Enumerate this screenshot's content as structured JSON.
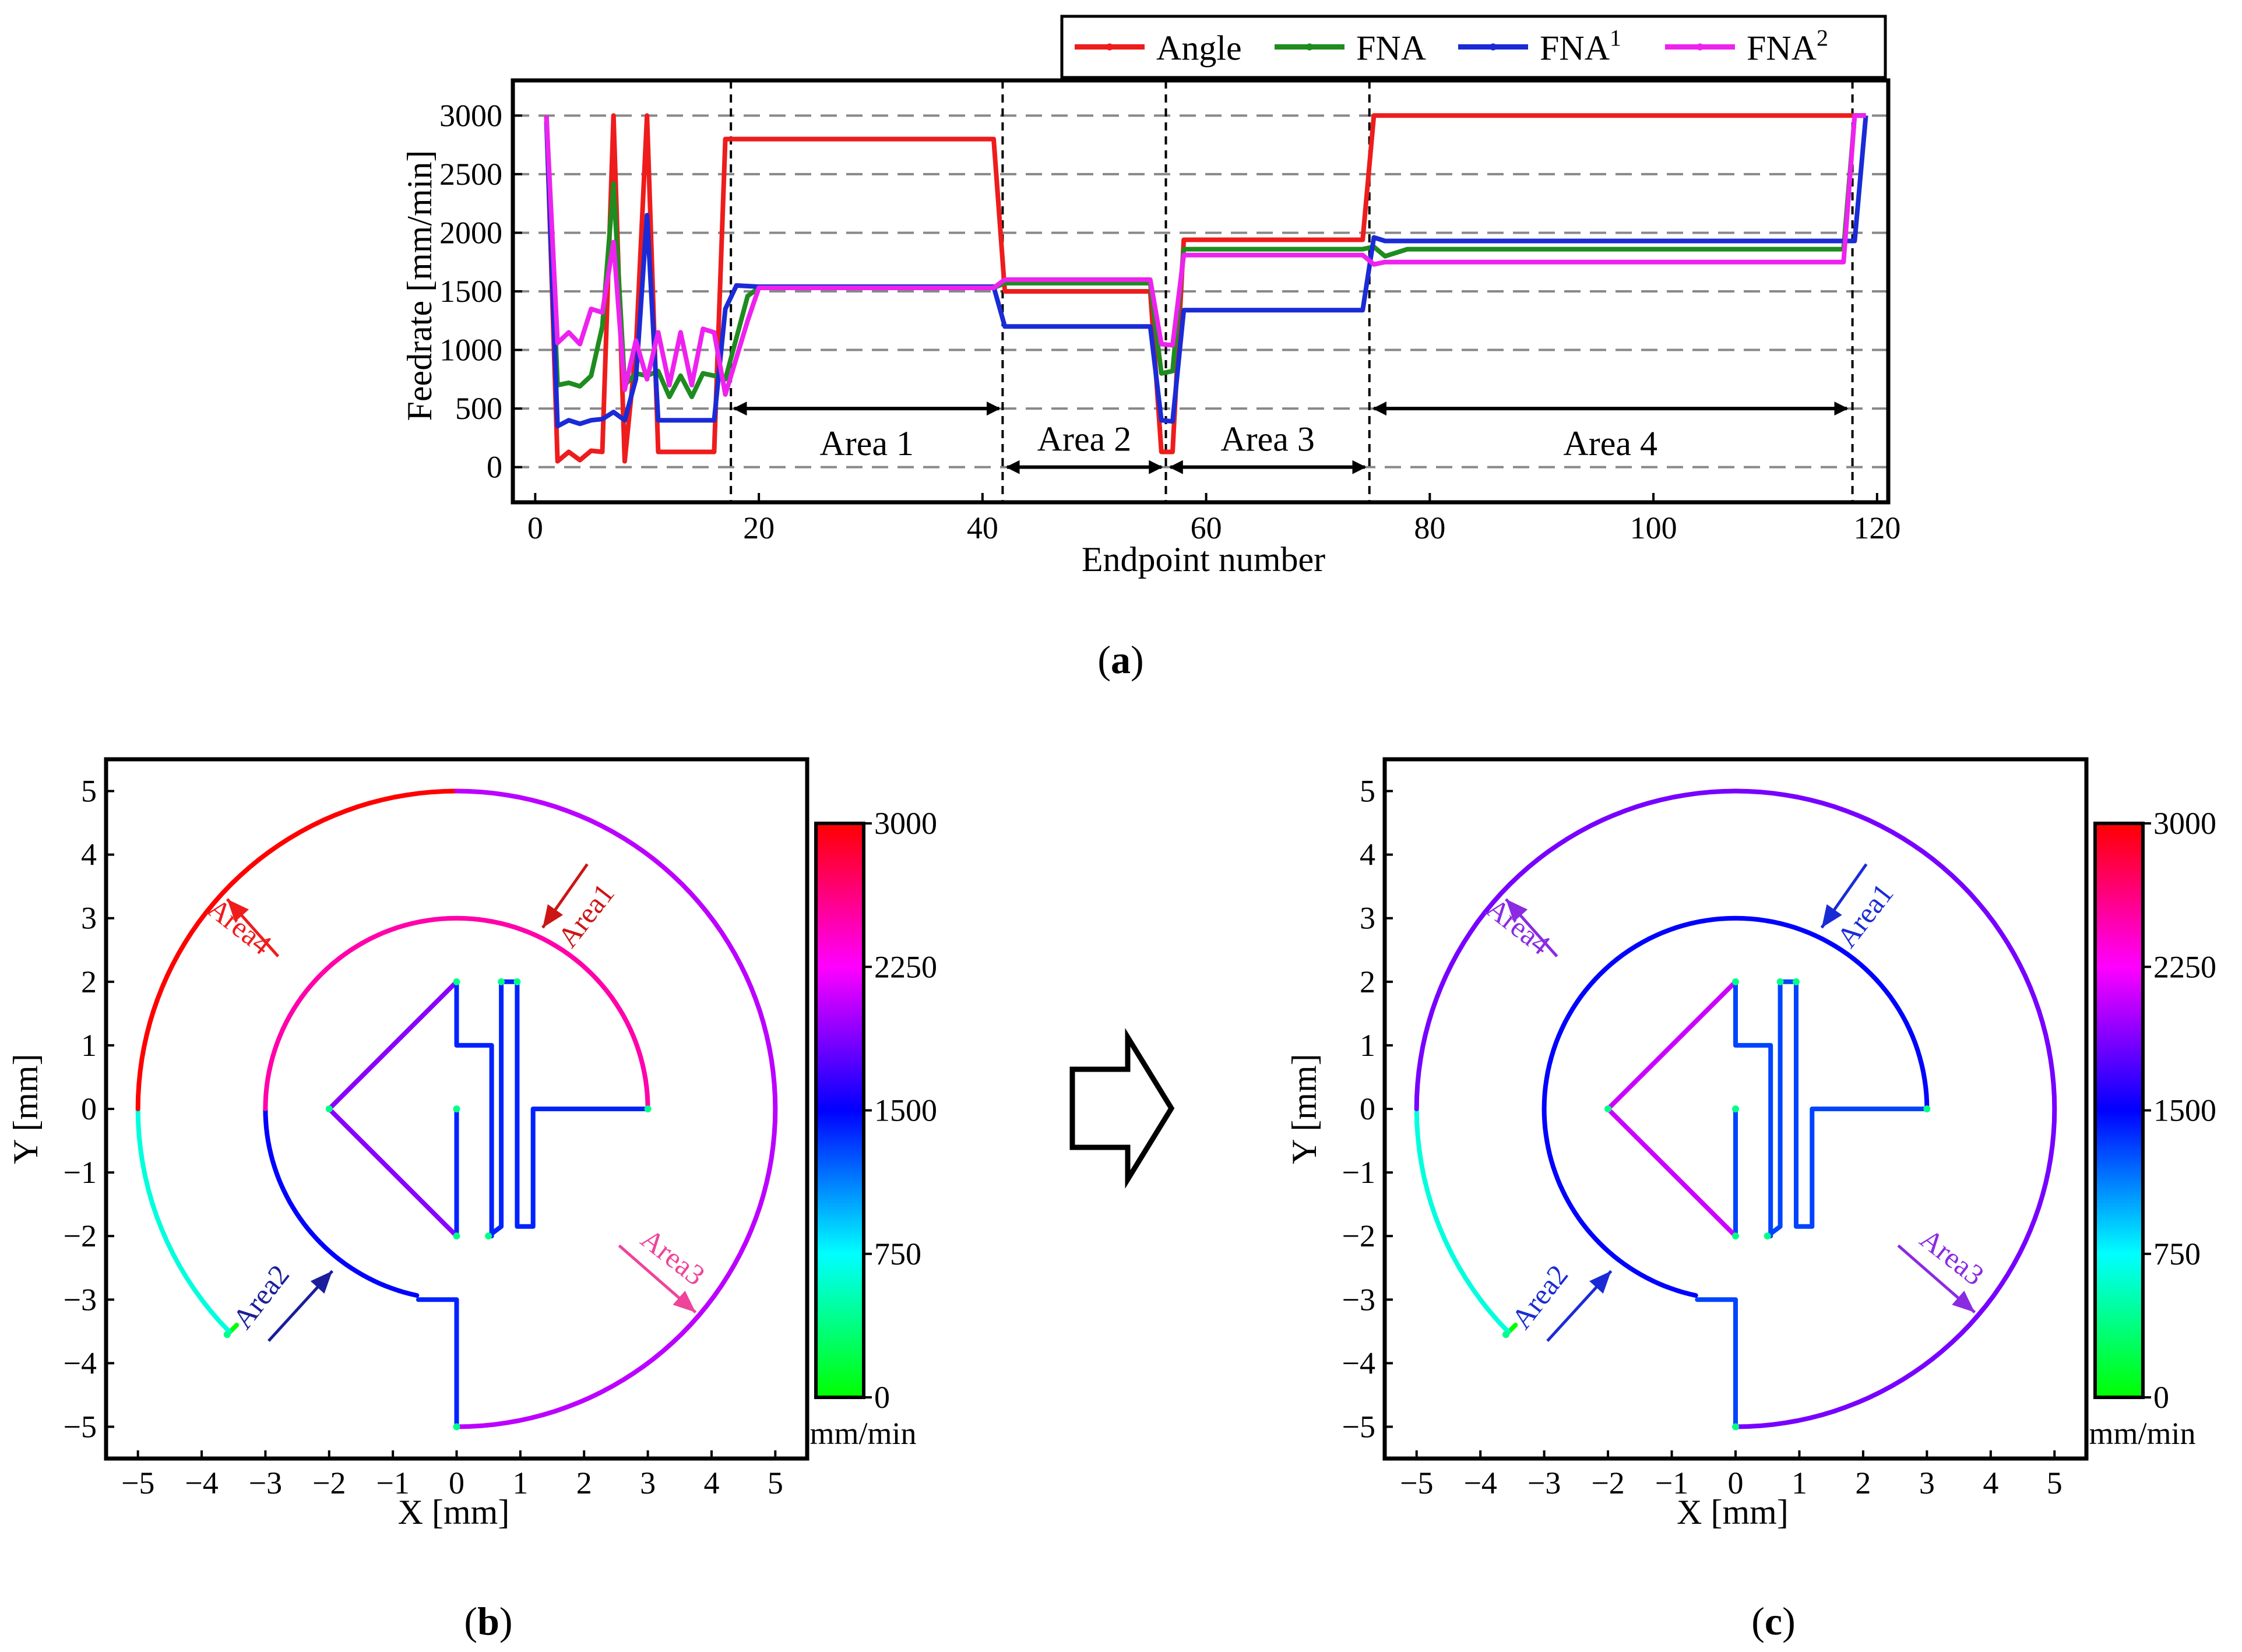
{
  "figure": {
    "captions": [
      {
        "id": "a",
        "open": "(",
        "letter": "a",
        "close": ")"
      },
      {
        "id": "b",
        "open": "(",
        "letter": "b",
        "close": ")"
      },
      {
        "id": "c",
        "open": "(",
        "letter": "c",
        "close": ")"
      }
    ],
    "transition_icon": "hollow-right-arrow"
  },
  "chart_data": [
    {
      "id": "a",
      "type": "line",
      "xlabel": "Endpoint number",
      "ylabel": "Feedrate [mm/min]",
      "xlim": [
        -2,
        121
      ],
      "ylim": [
        -300,
        3300
      ],
      "xticks": [
        0,
        20,
        40,
        60,
        80,
        100,
        120
      ],
      "yticks": [
        0,
        500,
        1000,
        1500,
        2000,
        2500,
        3000
      ],
      "grid": "horizontal-dashed",
      "legend_position": "top-right-outside",
      "legend": [
        {
          "base": "Angle",
          "sup": "",
          "color": "#ee1c1c"
        },
        {
          "base": "FNA",
          "sup": "",
          "color": "#1e8c1e"
        },
        {
          "base": "FNA",
          "sup": "1",
          "color": "#1a2bd6"
        },
        {
          "base": "FNA",
          "sup": "2",
          "color": "#ee22ee"
        }
      ],
      "series": [
        {
          "name": "Angle",
          "color": "#ee1c1c",
          "points": [
            [
              1,
              3000
            ],
            [
              2,
              50
            ],
            [
              3,
              130
            ],
            [
              4,
              60
            ],
            [
              5,
              140
            ],
            [
              6,
              130
            ],
            [
              7,
              3000
            ],
            [
              8,
              50
            ],
            [
              9,
              1000
            ],
            [
              10,
              3000
            ],
            [
              11,
              130
            ],
            [
              12,
              130
            ],
            [
              13,
              130
            ],
            [
              14,
              130
            ],
            [
              15,
              130
            ],
            [
              16,
              130
            ],
            [
              17,
              2800
            ],
            [
              41,
              2800
            ],
            [
              42,
              1500
            ],
            [
              55,
              1500
            ],
            [
              56,
              130
            ],
            [
              57,
              130
            ],
            [
              58,
              1940
            ],
            [
              74,
              1940
            ],
            [
              75,
              3000
            ],
            [
              117,
              3000
            ],
            [
              118,
              3000
            ],
            [
              119,
              3000
            ]
          ]
        },
        {
          "name": "FNA",
          "color": "#1e8c1e",
          "points": [
            [
              1,
              3000
            ],
            [
              2,
              700
            ],
            [
              3,
              720
            ],
            [
              4,
              690
            ],
            [
              5,
              780
            ],
            [
              6,
              1200
            ],
            [
              7,
              2420
            ],
            [
              8,
              700
            ],
            [
              9,
              800
            ],
            [
              10,
              780
            ],
            [
              11,
              820
            ],
            [
              12,
              600
            ],
            [
              13,
              780
            ],
            [
              14,
              600
            ],
            [
              15,
              800
            ],
            [
              16,
              780
            ],
            [
              17,
              750
            ],
            [
              19,
              1460
            ],
            [
              20,
              1530
            ],
            [
              41,
              1530
            ],
            [
              42,
              1570
            ],
            [
              55,
              1570
            ],
            [
              56,
              800
            ],
            [
              57,
              820
            ],
            [
              58,
              1860
            ],
            [
              74,
              1860
            ],
            [
              75,
              1880
            ],
            [
              76,
              1800
            ],
            [
              78,
              1860
            ],
            [
              117,
              1860
            ],
            [
              118,
              3000
            ],
            [
              119,
              3000
            ]
          ]
        },
        {
          "name": "FNA1",
          "color": "#1a2bd6",
          "points": [
            [
              1,
              2950
            ],
            [
              2,
              350
            ],
            [
              3,
              400
            ],
            [
              4,
              370
            ],
            [
              5,
              400
            ],
            [
              6,
              410
            ],
            [
              7,
              470
            ],
            [
              8,
              400
            ],
            [
              9,
              750
            ],
            [
              10,
              2150
            ],
            [
              11,
              400
            ],
            [
              12,
              400
            ],
            [
              13,
              400
            ],
            [
              14,
              400
            ],
            [
              15,
              400
            ],
            [
              16,
              400
            ],
            [
              17,
              1350
            ],
            [
              18,
              1550
            ],
            [
              20,
              1540
            ],
            [
              41,
              1540
            ],
            [
              42,
              1200
            ],
            [
              55,
              1200
            ],
            [
              56,
              400
            ],
            [
              57,
              390
            ],
            [
              58,
              1340
            ],
            [
              74,
              1340
            ],
            [
              75,
              1960
            ],
            [
              76,
              1930
            ],
            [
              117,
              1930
            ],
            [
              118,
              1930
            ],
            [
              119,
              3000
            ]
          ]
        },
        {
          "name": "FNA2",
          "color": "#ee22ee",
          "points": [
            [
              1,
              3000
            ],
            [
              2,
              1060
            ],
            [
              3,
              1150
            ],
            [
              4,
              1050
            ],
            [
              5,
              1350
            ],
            [
              6,
              1320
            ],
            [
              7,
              1920
            ],
            [
              8,
              660
            ],
            [
              9,
              1080
            ],
            [
              10,
              750
            ],
            [
              11,
              1150
            ],
            [
              12,
              700
            ],
            [
              13,
              1150
            ],
            [
              14,
              700
            ],
            [
              15,
              1180
            ],
            [
              16,
              1150
            ],
            [
              17,
              620
            ],
            [
              19,
              1250
            ],
            [
              20,
              1530
            ],
            [
              41,
              1530
            ],
            [
              42,
              1600
            ],
            [
              55,
              1600
            ],
            [
              56,
              1050
            ],
            [
              57,
              1040
            ],
            [
              58,
              1810
            ],
            [
              74,
              1810
            ],
            [
              75,
              1730
            ],
            [
              76,
              1750
            ],
            [
              117,
              1750
            ],
            [
              118,
              3000
            ],
            [
              119,
              3000
            ]
          ]
        }
      ],
      "vlines": [
        17.5,
        41.8,
        56.4,
        74.6,
        117.8
      ],
      "areas": [
        {
          "label": "Area 1",
          "from": 17.8,
          "to": 41.5,
          "y": 500
        },
        {
          "label": "Area 2",
          "from": 42.2,
          "to": 56.0,
          "y": 0
        },
        {
          "label": "Area 3",
          "from": 56.8,
          "to": 74.2,
          "y": 0
        },
        {
          "label": "Area 4",
          "from": 75.0,
          "to": 117.3,
          "y": 500
        }
      ]
    },
    {
      "id": "b",
      "type": "line",
      "variant": "toolpath-colormap",
      "xlabel": "X [mm]",
      "ylabel": "Y [mm]",
      "xlim": [
        -5.5,
        5.5
      ],
      "ylim": [
        -5.5,
        5.5
      ],
      "xticks": [
        -5,
        -4,
        -3,
        -2,
        -1,
        0,
        1,
        2,
        3,
        4,
        5
      ],
      "yticks": [
        -5,
        -4,
        -3,
        -2,
        -1,
        0,
        1,
        2,
        3,
        4,
        5
      ],
      "colorbar": {
        "min": 0,
        "max": 3000,
        "ticks": [
          0,
          750,
          1500,
          2250,
          3000
        ],
        "unit": "mm/min"
      },
      "area_labels": [
        {
          "label": "Area1",
          "color": "#cc1515"
        },
        {
          "label": "Area2",
          "color": "#1a1e9a"
        },
        {
          "label": "Area3",
          "color": "#ee4499"
        },
        {
          "label": "Area4",
          "color": "#ee1c1c"
        }
      ],
      "segment_speeds": {
        "spike": 0,
        "leadin": 650,
        "triangle": 1900,
        "inner_center": 1400,
        "area1": 2500,
        "area2": 1500,
        "area3": 2050,
        "area4": 3000
      }
    },
    {
      "id": "c",
      "type": "line",
      "variant": "toolpath-colormap",
      "xlabel": "X [mm]",
      "ylabel": "Y [mm]",
      "xlim": [
        -5.5,
        5.5
      ],
      "ylim": [
        -5.5,
        5.5
      ],
      "xticks": [
        -5,
        -4,
        -3,
        -2,
        -1,
        0,
        1,
        2,
        3,
        4,
        5
      ],
      "yticks": [
        -5,
        -4,
        -3,
        -2,
        -1,
        0,
        1,
        2,
        3,
        4,
        5
      ],
      "colorbar": {
        "min": 0,
        "max": 3000,
        "ticks": [
          0,
          750,
          1500,
          2250,
          3000
        ],
        "unit": "mm/min"
      },
      "area_labels": [
        {
          "label": "Area1",
          "color": "#1a2bd6"
        },
        {
          "label": "Area2",
          "color": "#1a2bd6"
        },
        {
          "label": "Area3",
          "color": "#8a2be2"
        },
        {
          "label": "Area4",
          "color": "#8a2be2"
        }
      ],
      "segment_speeds": {
        "spike": 0,
        "leadin": 650,
        "triangle": 2100,
        "inner_center": 1300,
        "area1": 1500,
        "area2": 1500,
        "area3": 1850,
        "area4": 1850
      }
    }
  ]
}
